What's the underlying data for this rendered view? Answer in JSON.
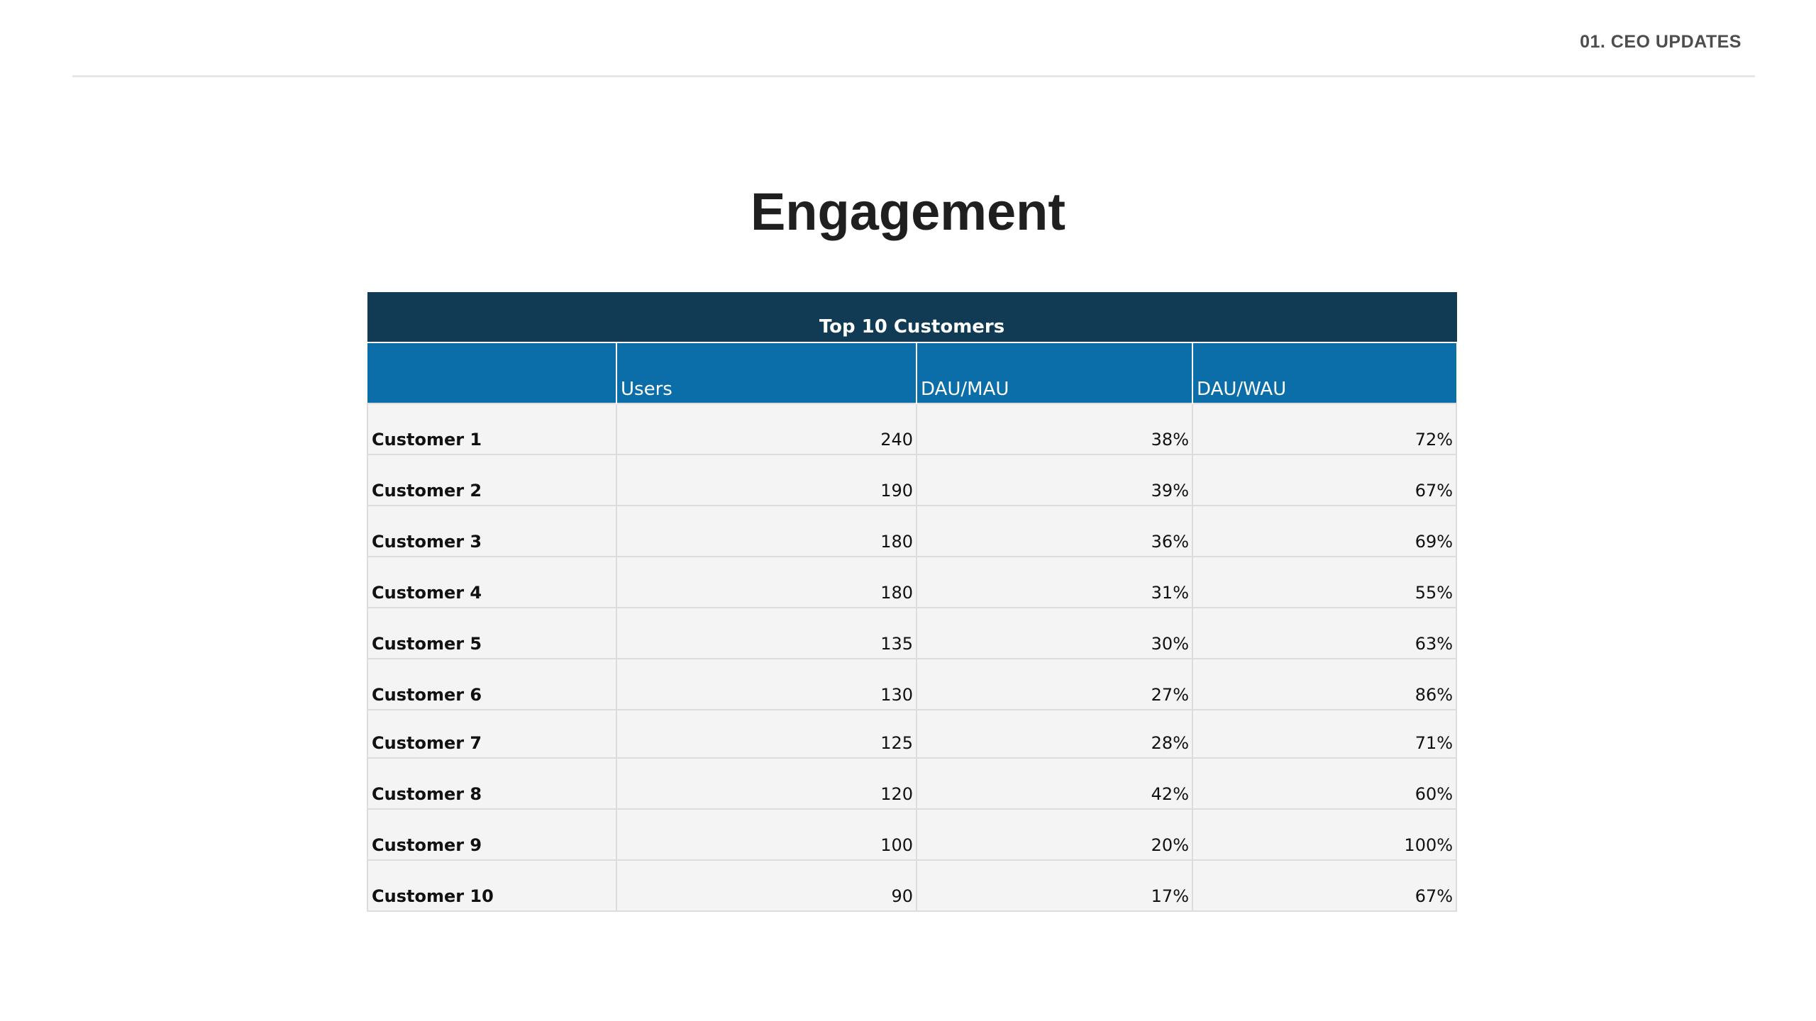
{
  "header": {
    "section_label": "01. CEO UPDATES"
  },
  "page": {
    "title": "Engagement"
  },
  "table": {
    "title": "Top 10 Customers",
    "columns": [
      "",
      "Users",
      "DAU/MAU",
      "DAU/WAU"
    ],
    "rows": [
      {
        "name": "Customer 1",
        "users": "240",
        "dau_mau": "38%",
        "dau_wau": "72%"
      },
      {
        "name": "Customer 2",
        "users": "190",
        "dau_mau": "39%",
        "dau_wau": "67%"
      },
      {
        "name": "Customer 3",
        "users": "180",
        "dau_mau": "36%",
        "dau_wau": "69%"
      },
      {
        "name": "Customer 4",
        "users": "180",
        "dau_mau": "31%",
        "dau_wau": "55%"
      },
      {
        "name": "Customer 5",
        "users": "135",
        "dau_mau": "30%",
        "dau_wau": "63%"
      },
      {
        "name": "Customer 6",
        "users": "130",
        "dau_mau": "27%",
        "dau_wau": "86%"
      },
      {
        "name": "Customer 7",
        "users": "125",
        "dau_mau": "28%",
        "dau_wau": "71%"
      },
      {
        "name": "Customer 8",
        "users": "120",
        "dau_mau": "42%",
        "dau_wau": "60%"
      },
      {
        "name": "Customer 9",
        "users": "100",
        "dau_mau": "20%",
        "dau_wau": "100%"
      },
      {
        "name": "Customer 10",
        "users": "90",
        "dau_mau": "17%",
        "dau_wau": "67%"
      }
    ]
  },
  "colors": {
    "title_bar": "#113b55",
    "header_bar": "#0b6ea8",
    "row_background": "#f4f4f4"
  }
}
